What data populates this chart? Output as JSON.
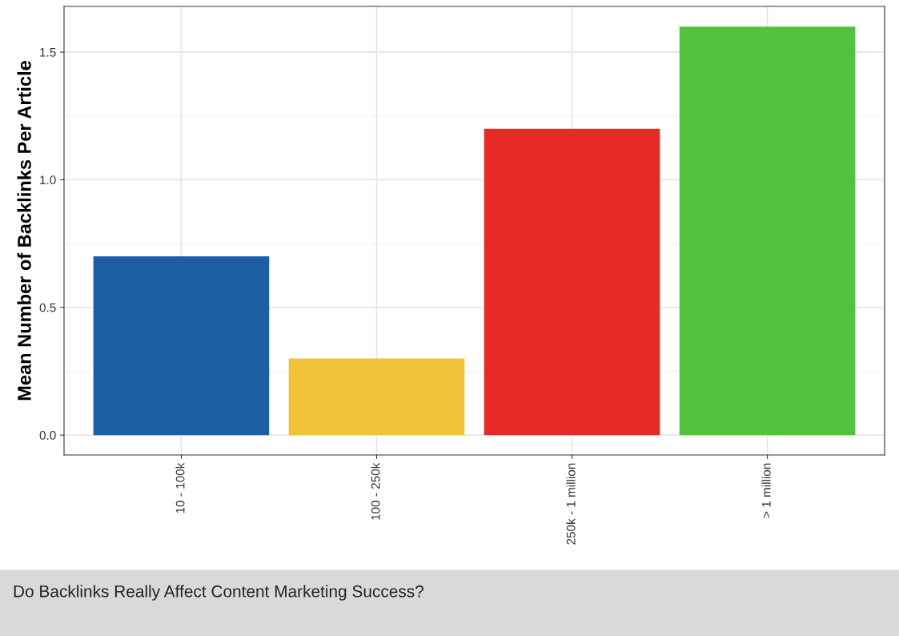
{
  "chart_data": {
    "type": "bar",
    "ylabel": "Mean Number of Backlinks Per Article",
    "categories": [
      "10 - 100k",
      "100 - 250k",
      "250k - 1 million",
      "> 1 million"
    ],
    "values": [
      0.7,
      0.3,
      1.2,
      1.6
    ],
    "colors": [
      "#1c5fa3",
      "#f0c23a",
      "#e62b27",
      "#53c13b"
    ],
    "ylim": [
      -0.078,
      1.679
    ],
    "yticks": [
      {
        "value": 0,
        "label": "0.0"
      },
      {
        "value": 0.5,
        "label": "0.5"
      },
      {
        "value": 1,
        "label": "1.0"
      },
      {
        "value": 1.5,
        "label": "1.5"
      }
    ],
    "grid": true,
    "annotations": [
      "Do Backlinks Really Affect Content Marketing Success?"
    ]
  }
}
